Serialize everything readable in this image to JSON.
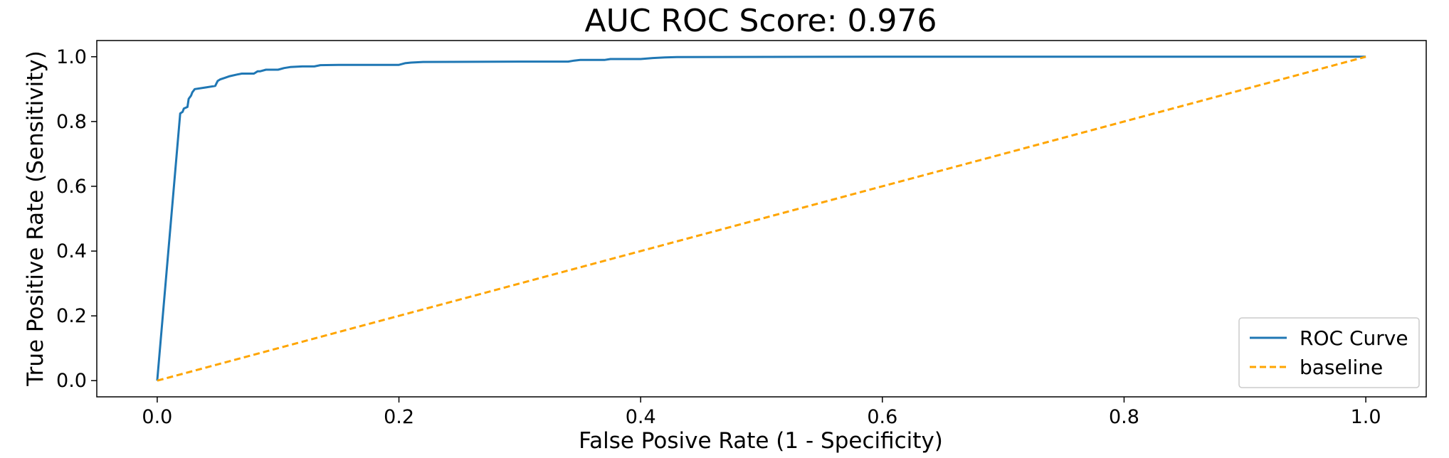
{
  "chart_data": {
    "type": "line",
    "title": "AUC ROC Score: 0.976",
    "xlabel": "False Posive Rate (1 - Specificity)",
    "ylabel": "True Positive Rate (Sensitivity)",
    "xlim": [
      -0.05,
      1.05
    ],
    "ylim": [
      -0.05,
      1.05
    ],
    "xticks": [
      0.0,
      0.2,
      0.4,
      0.6,
      0.8,
      1.0
    ],
    "xtick_labels": [
      "0.0",
      "0.2",
      "0.4",
      "0.6",
      "0.8",
      "1.0"
    ],
    "yticks": [
      0.0,
      0.2,
      0.4,
      0.6,
      0.8,
      1.0
    ],
    "ytick_labels": [
      "0.0",
      "0.2",
      "0.4",
      "0.6",
      "0.8",
      "1.0"
    ],
    "grid": false,
    "legend": "lower-right",
    "series": [
      {
        "name": "ROC Curve",
        "color": "#1f77b4",
        "style": "solid",
        "x": [
          0.0,
          0.019,
          0.021,
          0.022,
          0.025,
          0.026,
          0.028,
          0.029,
          0.03,
          0.031,
          0.04,
          0.048,
          0.05,
          0.052,
          0.056,
          0.06,
          0.066,
          0.07,
          0.08,
          0.083,
          0.085,
          0.09,
          0.1,
          0.105,
          0.11,
          0.12,
          0.13,
          0.135,
          0.15,
          0.2,
          0.205,
          0.21,
          0.22,
          0.3,
          0.34,
          0.345,
          0.35,
          0.37,
          0.375,
          0.4,
          0.41,
          0.42,
          0.43,
          0.6,
          0.8,
          1.0
        ],
        "y": [
          0.0,
          0.825,
          0.83,
          0.84,
          0.845,
          0.87,
          0.88,
          0.89,
          0.895,
          0.9,
          0.905,
          0.91,
          0.925,
          0.93,
          0.935,
          0.94,
          0.945,
          0.948,
          0.948,
          0.955,
          0.955,
          0.96,
          0.96,
          0.965,
          0.968,
          0.97,
          0.97,
          0.974,
          0.975,
          0.975,
          0.98,
          0.982,
          0.984,
          0.985,
          0.985,
          0.988,
          0.99,
          0.99,
          0.993,
          0.993,
          0.996,
          0.998,
          0.999,
          1.0,
          1.0,
          1.0
        ]
      },
      {
        "name": "baseline",
        "color": "#ffa500",
        "style": "dashed",
        "x": [
          0.0,
          1.0
        ],
        "y": [
          0.0,
          1.0
        ]
      }
    ]
  }
}
